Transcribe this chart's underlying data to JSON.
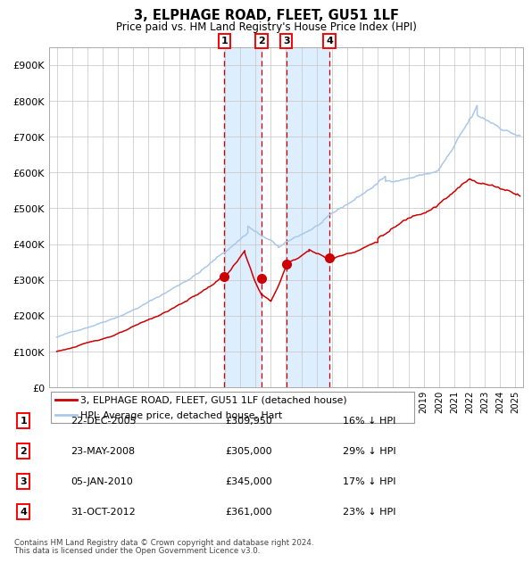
{
  "title": "3, ELPHAGE ROAD, FLEET, GU51 1LF",
  "subtitle": "Price paid vs. HM Land Registry's House Price Index (HPI)",
  "legend_line1": "3, ELPHAGE ROAD, FLEET, GU51 1LF (detached house)",
  "legend_line2": "HPI: Average price, detached house, Hart",
  "footnote1": "Contains HM Land Registry data © Crown copyright and database right 2024.",
  "footnote2": "This data is licensed under the Open Government Licence v3.0.",
  "transactions": [
    {
      "num": 1,
      "date": "22-DEC-2005",
      "price": 309950,
      "hpi_pct": "16% ↓ HPI",
      "year": 2005.97
    },
    {
      "num": 2,
      "date": "23-MAY-2008",
      "price": 305000,
      "hpi_pct": "29% ↓ HPI",
      "year": 2008.4
    },
    {
      "num": 3,
      "date": "05-JAN-2010",
      "price": 345000,
      "hpi_pct": "17% ↓ HPI",
      "year": 2010.01
    },
    {
      "num": 4,
      "date": "31-OCT-2012",
      "price": 361000,
      "hpi_pct": "23% ↓ HPI",
      "year": 2012.83
    }
  ],
  "hpi_color": "#aac8e8",
  "price_color": "#cc0000",
  "vline_color": "#cc0000",
  "shade_color": "#ddeeff",
  "grid_color": "#cccccc",
  "ylim": [
    0,
    950000
  ],
  "xlim_start": 1994.5,
  "xlim_end": 2025.5,
  "yticks": [
    0,
    100000,
    200000,
    300000,
    400000,
    500000,
    600000,
    700000,
    800000,
    900000
  ]
}
